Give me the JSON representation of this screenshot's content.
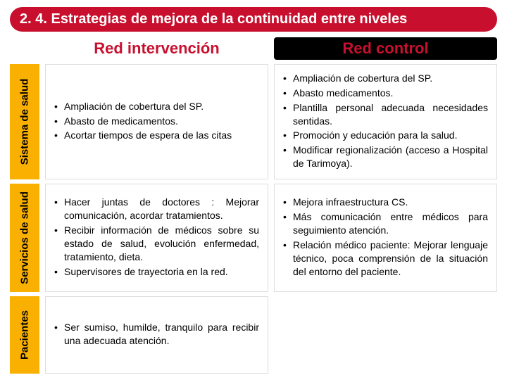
{
  "colors": {
    "brand_red": "#c8102e",
    "accent_yellow": "#f9b000",
    "header_control_bg": "#000000",
    "cell_border": "#dddddd",
    "text": "#000000",
    "title_text": "#ffffff",
    "background": "#ffffff"
  },
  "type": "table",
  "title": "2. 4. Estrategias de mejora de la continuidad entre niveles",
  "columns": {
    "intervencion": "Red intervención",
    "control": "Red control"
  },
  "rows": {
    "sistema": {
      "label": "Sistema de salud",
      "intervencion": [
        "Ampliación de cobertura del SP.",
        "Abasto de medicamentos.",
        "Acortar tiempos de espera de las citas"
      ],
      "control": [
        "Ampliación de cobertura del SP.",
        "Abasto medicamentos.",
        "Plantilla personal adecuada necesidades sentidas.",
        "Promoción y educación para la salud.",
        "Modificar regionalización (acceso a Hospital de Tarimoya)."
      ]
    },
    "servicios": {
      "label": "Servicios de salud",
      "intervencion": [
        "Hacer juntas de doctores : Mejorar comunicación, acordar tratamientos.",
        "Recibir información de médicos sobre su estado de salud, evolución enfermedad, tratamiento, dieta.",
        "Supervisores de trayectoria en la red."
      ],
      "control": [
        "Mejora infraestructura CS.",
        "Más comunicación entre médicos para seguimiento atención.",
        "Relación médico paciente: Mejorar lenguaje técnico, poca comprensión de la situación del entorno del paciente."
      ]
    },
    "pacientes": {
      "label": "Pacientes",
      "intervencion": [
        "Ser sumiso, humilde, tranquilo para recibir una adecuada atención."
      ],
      "control": []
    }
  }
}
